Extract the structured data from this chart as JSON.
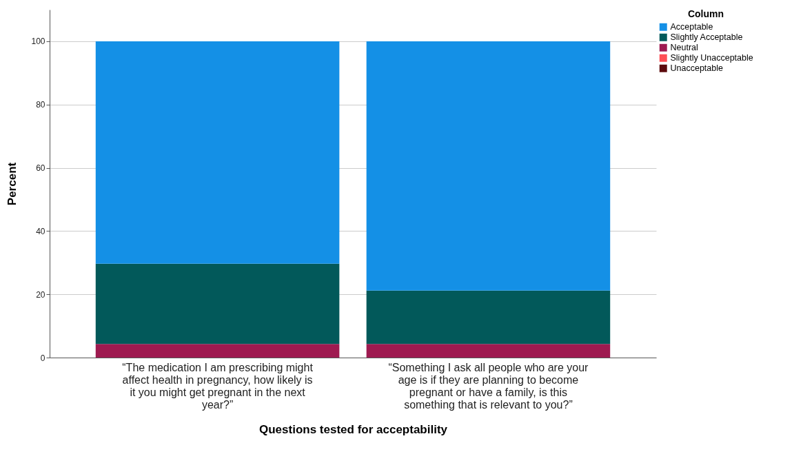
{
  "chart_data": {
    "type": "bar",
    "stacked": true,
    "xlabel": "Questions tested for acceptability",
    "ylabel": "Percent",
    "legend_title": "Column",
    "legend": "top right",
    "grid": "y",
    "categories": [
      "“The medication I am prescribing might affect health in pregnancy, how likely is it you might get pregnant in the next year?”",
      "“Something I ask all people who are your age is if they are planning to become pregnant or have a family, is this something that is relevant to you?”"
    ],
    "ylim": [
      0,
      110
    ],
    "yticks": [
      0,
      20,
      40,
      60,
      80,
      100
    ],
    "series": [
      {
        "name": "Unacceptable",
        "color": "#5c0a0d",
        "values": [
          0,
          0
        ]
      },
      {
        "name": "Slightly Unacceptable",
        "color": "#fe4f55",
        "values": [
          0,
          0
        ]
      },
      {
        "name": "Neutral",
        "color": "#9e1a50",
        "values": [
          4.3,
          4.3
        ]
      },
      {
        "name": "Slightly Acceptable",
        "color": "#02595a",
        "values": [
          25.4,
          16.9
        ]
      },
      {
        "name": "Acceptable",
        "color": "#1490e6",
        "values": [
          70.3,
          78.8
        ]
      }
    ]
  }
}
